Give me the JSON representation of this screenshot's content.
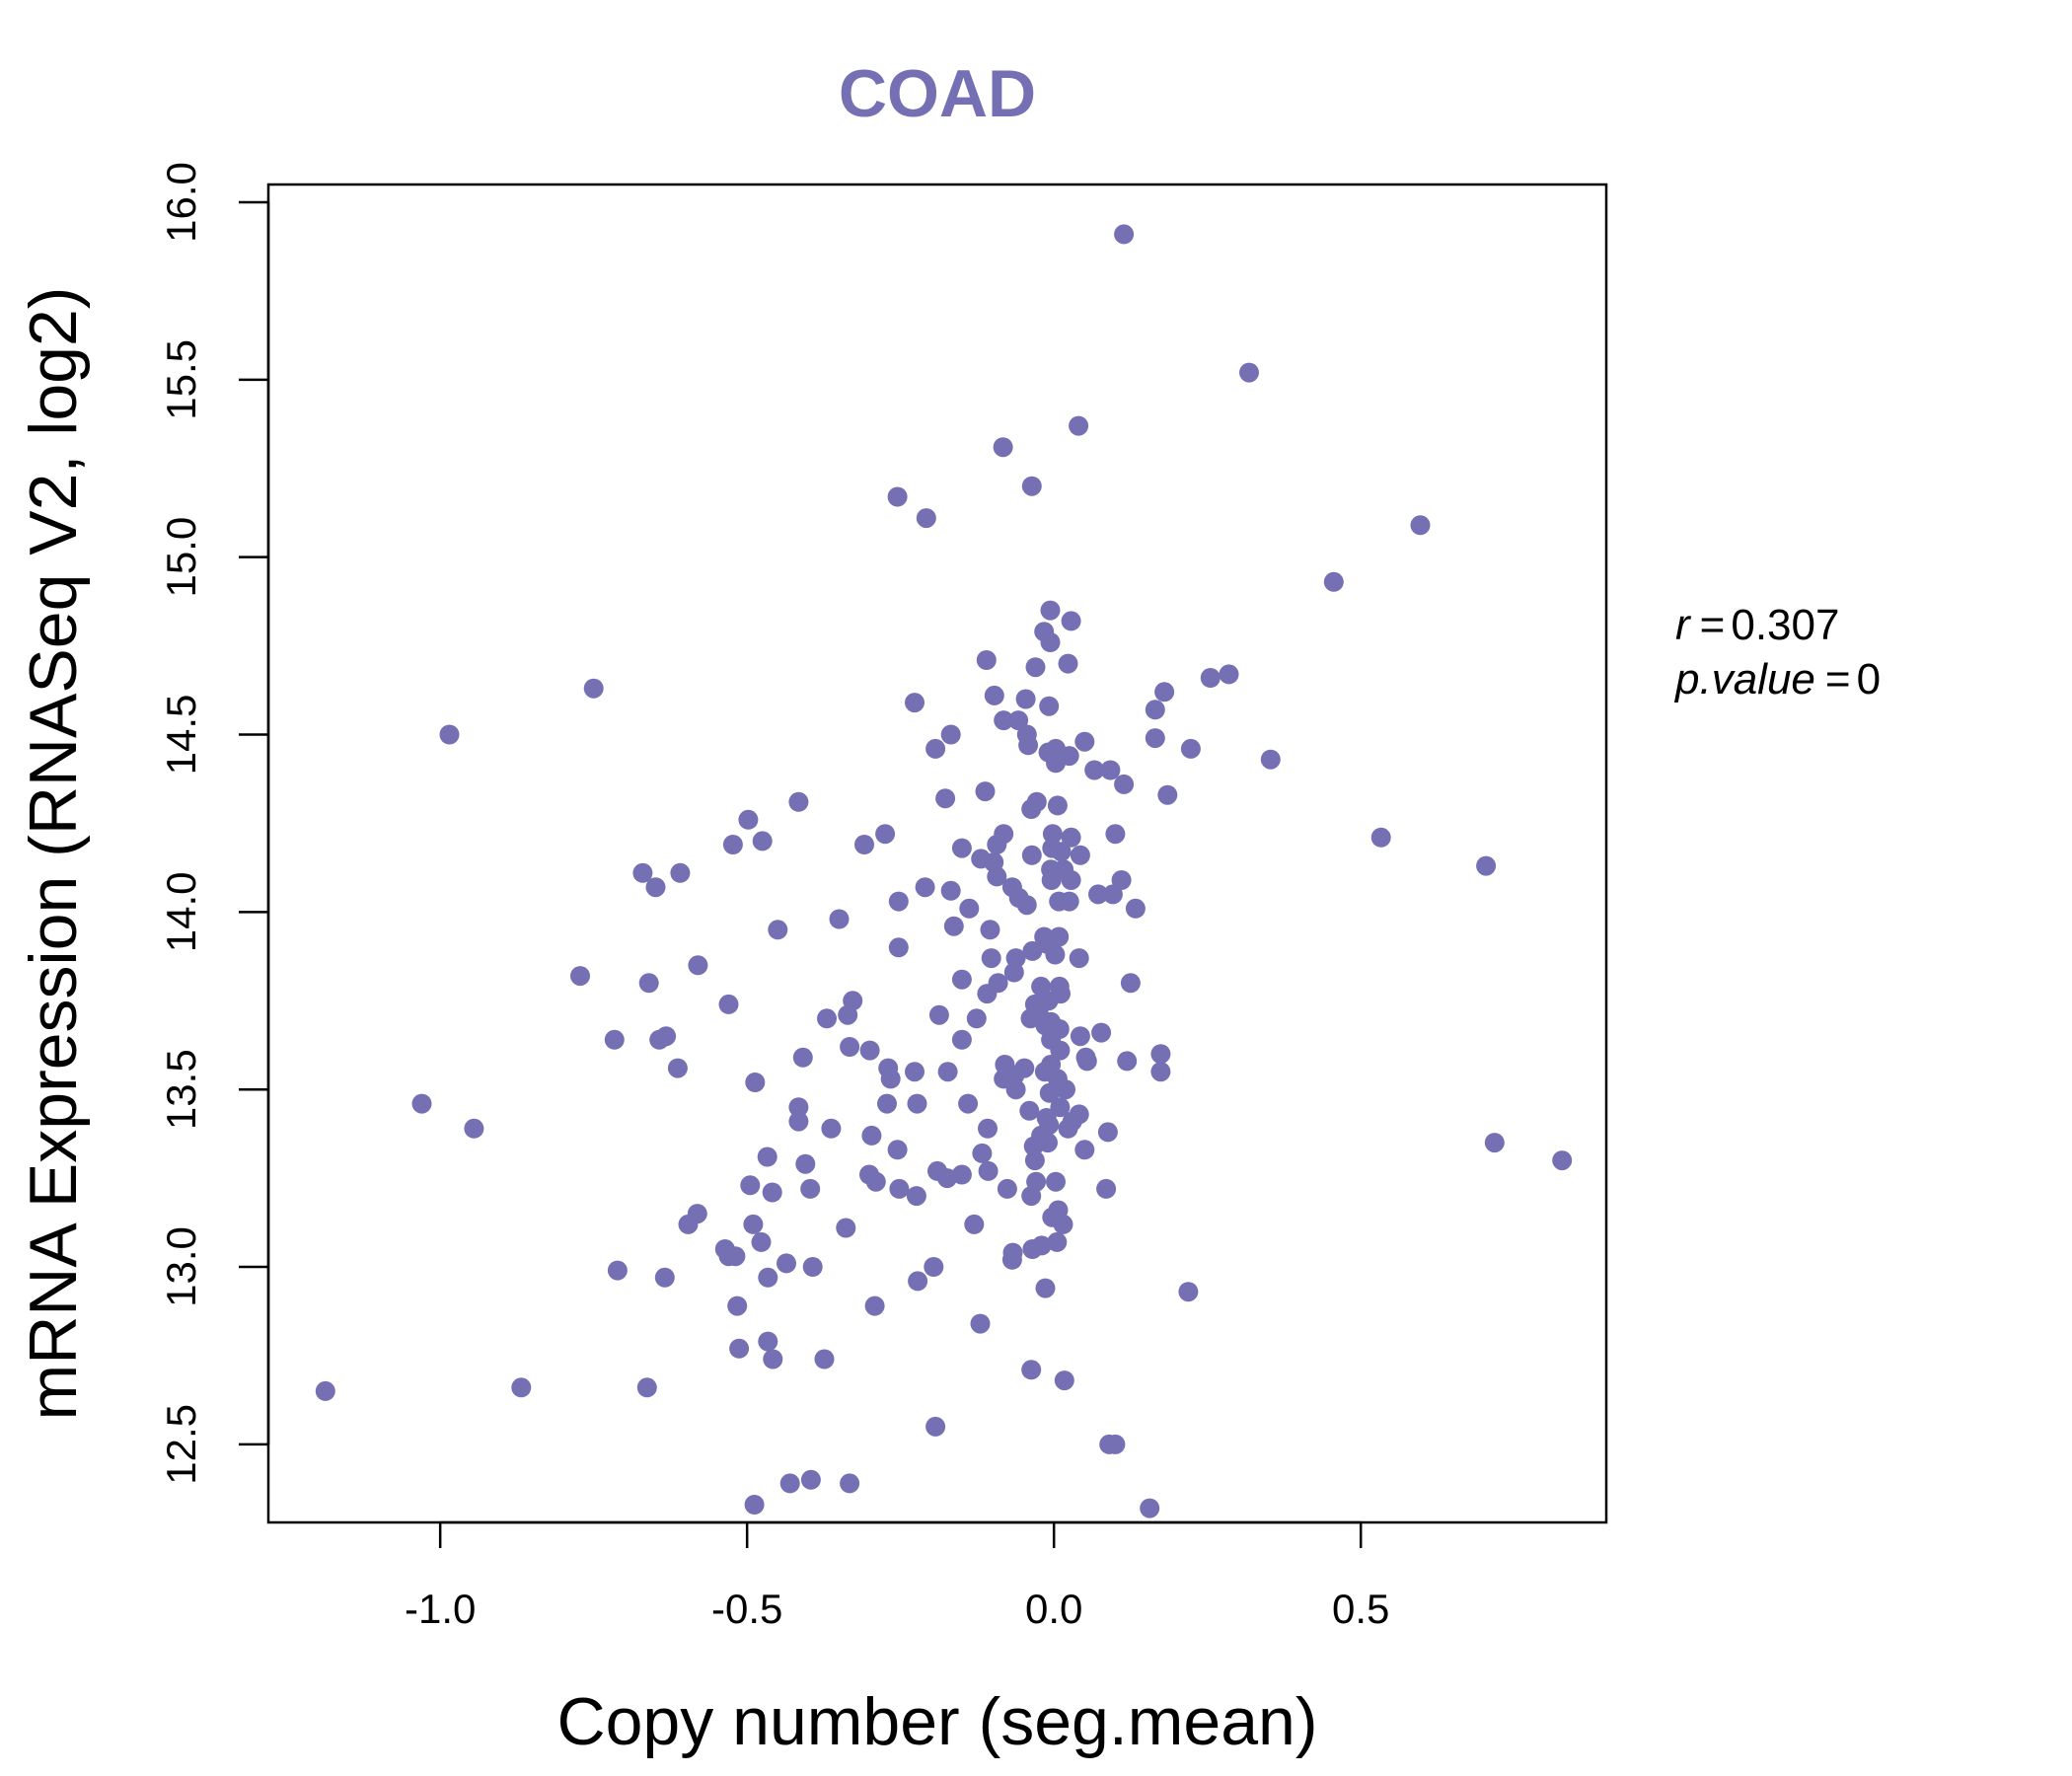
{
  "chart_data": {
    "type": "scatter",
    "title": "COAD",
    "xlabel": "Copy number (seg.mean)",
    "ylabel": "mRNA Expression (RNASeq V2, log2)",
    "xlim": [
      -1.28,
      0.9
    ],
    "ylim": [
      12.28,
      16.05
    ],
    "xticks": [
      -1.0,
      -0.5,
      0.0,
      0.5
    ],
    "xtick_labels": [
      "-1.0",
      "-0.5",
      "0.0",
      "0.5"
    ],
    "yticks": [
      12.5,
      13.0,
      13.5,
      14.0,
      14.5,
      15.0,
      15.5,
      16.0
    ],
    "ytick_labels": [
      "12.5",
      "13.0",
      "13.5",
      "14.0",
      "14.5",
      "15.0",
      "15.5",
      "16.0"
    ],
    "point_color": "#7570b3",
    "grid": false,
    "annotation": {
      "r_label": "r",
      "r_value": "0.307",
      "p_label": "p.value",
      "p_value": "0"
    },
    "points": [
      {
        "x": 0.114,
        "y": 15.91
      },
      {
        "x": 0.318,
        "y": 15.52
      },
      {
        "x": 0.04,
        "y": 15.37
      },
      {
        "x": -0.083,
        "y": 15.31
      },
      {
        "x": -0.036,
        "y": 15.2
      },
      {
        "x": -0.255,
        "y": 15.17
      },
      {
        "x": -0.208,
        "y": 15.11
      },
      {
        "x": 0.597,
        "y": 15.09
      },
      {
        "x": 0.456,
        "y": 14.93
      },
      {
        "x": -0.006,
        "y": 14.85
      },
      {
        "x": 0.028,
        "y": 14.82
      },
      {
        "x": -0.016,
        "y": 14.79
      },
      {
        "x": -0.006,
        "y": 14.76
      },
      {
        "x": -0.11,
        "y": 14.71
      },
      {
        "x": -0.03,
        "y": 14.69
      },
      {
        "x": 0.023,
        "y": 14.7
      },
      {
        "x": 0.285,
        "y": 14.67
      },
      {
        "x": 0.255,
        "y": 14.66
      },
      {
        "x": -0.75,
        "y": 14.63
      },
      {
        "x": 0.18,
        "y": 14.62
      },
      {
        "x": -0.097,
        "y": 14.61
      },
      {
        "x": -0.227,
        "y": 14.59
      },
      {
        "x": -0.046,
        "y": 14.6
      },
      {
        "x": -0.008,
        "y": 14.58
      },
      {
        "x": 0.165,
        "y": 14.57
      },
      {
        "x": -0.082,
        "y": 14.54
      },
      {
        "x": -0.058,
        "y": 14.54
      },
      {
        "x": -0.985,
        "y": 14.5
      },
      {
        "x": -0.168,
        "y": 14.5
      },
      {
        "x": -0.044,
        "y": 14.5
      },
      {
        "x": 0.165,
        "y": 14.49
      },
      {
        "x": 0.05,
        "y": 14.48
      },
      {
        "x": -0.193,
        "y": 14.46
      },
      {
        "x": 0.223,
        "y": 14.46
      },
      {
        "x": 0.003,
        "y": 14.46
      },
      {
        "x": -0.042,
        "y": 14.47
      },
      {
        "x": -0.009,
        "y": 14.45
      },
      {
        "x": 0.025,
        "y": 14.44
      },
      {
        "x": 0.353,
        "y": 14.43
      },
      {
        "x": 0.003,
        "y": 14.42
      },
      {
        "x": 0.066,
        "y": 14.4
      },
      {
        "x": 0.092,
        "y": 14.4
      },
      {
        "x": 0.114,
        "y": 14.36
      },
      {
        "x": -0.112,
        "y": 14.34
      },
      {
        "x": -0.177,
        "y": 14.32
      },
      {
        "x": 0.185,
        "y": 14.33
      },
      {
        "x": -0.416,
        "y": 14.31
      },
      {
        "x": -0.028,
        "y": 14.31
      },
      {
        "x": 0.006,
        "y": 14.3
      },
      {
        "x": -0.037,
        "y": 14.29
      },
      {
        "x": -0.498,
        "y": 14.26
      },
      {
        "x": -0.275,
        "y": 14.22
      },
      {
        "x": -0.082,
        "y": 14.22
      },
      {
        "x": -0.002,
        "y": 14.22
      },
      {
        "x": 0.1,
        "y": 14.22
      },
      {
        "x": 0.533,
        "y": 14.21
      },
      {
        "x": 0.028,
        "y": 14.21
      },
      {
        "x": -0.475,
        "y": 14.2
      },
      {
        "x": -0.523,
        "y": 14.19
      },
      {
        "x": -0.309,
        "y": 14.19
      },
      {
        "x": -0.093,
        "y": 14.19
      },
      {
        "x": -0.15,
        "y": 14.18
      },
      {
        "x": -0.003,
        "y": 14.18
      },
      {
        "x": 0.012,
        "y": 14.17
      },
      {
        "x": -0.036,
        "y": 14.16
      },
      {
        "x": 0.043,
        "y": 14.16
      },
      {
        "x": -0.119,
        "y": 14.15
      },
      {
        "x": -0.098,
        "y": 14.14
      },
      {
        "x": 0.704,
        "y": 14.13
      },
      {
        "x": -0.005,
        "y": 14.12
      },
      {
        "x": 0.016,
        "y": 14.12
      },
      {
        "x": -0.67,
        "y": 14.11
      },
      {
        "x": -0.609,
        "y": 14.11
      },
      {
        "x": -0.093,
        "y": 14.1
      },
      {
        "x": -0.004,
        "y": 14.09
      },
      {
        "x": 0.028,
        "y": 14.09
      },
      {
        "x": 0.11,
        "y": 14.09
      },
      {
        "x": -0.649,
        "y": 14.07
      },
      {
        "x": -0.21,
        "y": 14.07
      },
      {
        "x": -0.068,
        "y": 14.07
      },
      {
        "x": -0.168,
        "y": 14.06
      },
      {
        "x": 0.072,
        "y": 14.05
      },
      {
        "x": 0.096,
        "y": 14.05
      },
      {
        "x": -0.057,
        "y": 14.04
      },
      {
        "x": -0.253,
        "y": 14.03
      },
      {
        "x": 0.008,
        "y": 14.03
      },
      {
        "x": 0.025,
        "y": 14.03
      },
      {
        "x": -0.138,
        "y": 14.01
      },
      {
        "x": -0.044,
        "y": 14.02
      },
      {
        "x": 0.133,
        "y": 14.01
      },
      {
        "x": -0.35,
        "y": 13.98
      },
      {
        "x": -0.163,
        "y": 13.96
      },
      {
        "x": -0.45,
        "y": 13.95
      },
      {
        "x": -0.104,
        "y": 13.95
      },
      {
        "x": -0.016,
        "y": 13.93
      },
      {
        "x": 0.008,
        "y": 13.93
      },
      {
        "x": -0.253,
        "y": 13.9
      },
      {
        "x": -0.011,
        "y": 13.91
      },
      {
        "x": -0.035,
        "y": 13.89
      },
      {
        "x": -0.102,
        "y": 13.87
      },
      {
        "x": -0.062,
        "y": 13.87
      },
      {
        "x": 0.002,
        "y": 13.88
      },
      {
        "x": 0.041,
        "y": 13.87
      },
      {
        "x": -0.58,
        "y": 13.85
      },
      {
        "x": -0.772,
        "y": 13.82
      },
      {
        "x": -0.065,
        "y": 13.83
      },
      {
        "x": -0.15,
        "y": 13.81
      },
      {
        "x": -0.66,
        "y": 13.8
      },
      {
        "x": 0.125,
        "y": 13.8
      },
      {
        "x": -0.091,
        "y": 13.8
      },
      {
        "x": 0.009,
        "y": 13.79
      },
      {
        "x": -0.021,
        "y": 13.79
      },
      {
        "x": -0.109,
        "y": 13.77
      },
      {
        "x": 0.011,
        "y": 13.77
      },
      {
        "x": -0.53,
        "y": 13.74
      },
      {
        "x": -0.328,
        "y": 13.75
      },
      {
        "x": -0.031,
        "y": 13.74
      },
      {
        "x": -0.009,
        "y": 13.75
      },
      {
        "x": -0.025,
        "y": 13.72
      },
      {
        "x": -0.336,
        "y": 13.71
      },
      {
        "x": -0.37,
        "y": 13.7
      },
      {
        "x": -0.187,
        "y": 13.71
      },
      {
        "x": -0.126,
        "y": 13.7
      },
      {
        "x": -0.038,
        "y": 13.7
      },
      {
        "x": -0.005,
        "y": 13.69
      },
      {
        "x": -0.014,
        "y": 13.68
      },
      {
        "x": 0.009,
        "y": 13.67
      },
      {
        "x": 0.077,
        "y": 13.66
      },
      {
        "x": 0.043,
        "y": 13.65
      },
      {
        "x": -0.716,
        "y": 13.64
      },
      {
        "x": -0.643,
        "y": 13.64
      },
      {
        "x": -0.15,
        "y": 13.64
      },
      {
        "x": -0.005,
        "y": 13.64
      },
      {
        "x": -0.632,
        "y": 13.65
      },
      {
        "x": -0.333,
        "y": 13.62
      },
      {
        "x": -0.3,
        "y": 13.61
      },
      {
        "x": 0.01,
        "y": 13.61
      },
      {
        "x": 0.174,
        "y": 13.6
      },
      {
        "x": -0.409,
        "y": 13.59
      },
      {
        "x": 0.052,
        "y": 13.59
      },
      {
        "x": 0.119,
        "y": 13.58
      },
      {
        "x": -0.27,
        "y": 13.56
      },
      {
        "x": -0.08,
        "y": 13.57
      },
      {
        "x": -0.005,
        "y": 13.57
      },
      {
        "x": 0.054,
        "y": 13.58
      },
      {
        "x": -0.048,
        "y": 13.56
      },
      {
        "x": -0.613,
        "y": 13.56
      },
      {
        "x": -0.173,
        "y": 13.55
      },
      {
        "x": -0.227,
        "y": 13.55
      },
      {
        "x": 0.174,
        "y": 13.55
      },
      {
        "x": -0.015,
        "y": 13.55
      },
      {
        "x": -0.064,
        "y": 13.54
      },
      {
        "x": -0.266,
        "y": 13.53
      },
      {
        "x": -0.082,
        "y": 13.53
      },
      {
        "x": 0.006,
        "y": 13.53
      },
      {
        "x": -0.487,
        "y": 13.52
      },
      {
        "x": -0.062,
        "y": 13.5
      },
      {
        "x": 0.019,
        "y": 13.5
      },
      {
        "x": -0.007,
        "y": 13.49
      },
      {
        "x": -1.03,
        "y": 13.46
      },
      {
        "x": -0.272,
        "y": 13.46
      },
      {
        "x": -0.223,
        "y": 13.46
      },
      {
        "x": -0.416,
        "y": 13.45
      },
      {
        "x": -0.14,
        "y": 13.46
      },
      {
        "x": 0.01,
        "y": 13.45
      },
      {
        "x": -0.04,
        "y": 13.44
      },
      {
        "x": 0.041,
        "y": 13.43
      },
      {
        "x": -0.012,
        "y": 13.42
      },
      {
        "x": -0.416,
        "y": 13.41
      },
      {
        "x": 0.03,
        "y": 13.41
      },
      {
        "x": -0.008,
        "y": 13.4
      },
      {
        "x": -0.945,
        "y": 13.39
      },
      {
        "x": -0.363,
        "y": 13.39
      },
      {
        "x": -0.108,
        "y": 13.39
      },
      {
        "x": 0.023,
        "y": 13.39
      },
      {
        "x": 0.088,
        "y": 13.38
      },
      {
        "x": -0.297,
        "y": 13.37
      },
      {
        "x": -0.021,
        "y": 13.37
      },
      {
        "x": 0.718,
        "y": 13.35
      },
      {
        "x": -0.01,
        "y": 13.35
      },
      {
        "x": -0.255,
        "y": 13.33
      },
      {
        "x": -0.033,
        "y": 13.34
      },
      {
        "x": 0.05,
        "y": 13.33
      },
      {
        "x": -0.117,
        "y": 13.32
      },
      {
        "x": -0.467,
        "y": 13.31
      },
      {
        "x": 0.828,
        "y": 13.3
      },
      {
        "x": -0.405,
        "y": 13.29
      },
      {
        "x": -0.031,
        "y": 13.3
      },
      {
        "x": -0.19,
        "y": 13.27
      },
      {
        "x": -0.301,
        "y": 13.26
      },
      {
        "x": -0.107,
        "y": 13.27
      },
      {
        "x": -0.15,
        "y": 13.26
      },
      {
        "x": -0.174,
        "y": 13.25
      },
      {
        "x": -0.29,
        "y": 13.24
      },
      {
        "x": -0.029,
        "y": 13.24
      },
      {
        "x": 0.003,
        "y": 13.24
      },
      {
        "x": -0.495,
        "y": 13.23
      },
      {
        "x": -0.397,
        "y": 13.22
      },
      {
        "x": -0.076,
        "y": 13.22
      },
      {
        "x": -0.252,
        "y": 13.22
      },
      {
        "x": 0.085,
        "y": 13.22
      },
      {
        "x": -0.459,
        "y": 13.21
      },
      {
        "x": -0.224,
        "y": 13.2
      },
      {
        "x": -0.037,
        "y": 13.2
      },
      {
        "x": 0.007,
        "y": 13.16
      },
      {
        "x": -0.581,
        "y": 13.15
      },
      {
        "x": -0.596,
        "y": 13.12
      },
      {
        "x": -0.49,
        "y": 13.12
      },
      {
        "x": -0.13,
        "y": 13.12
      },
      {
        "x": 0.015,
        "y": 13.12
      },
      {
        "x": -0.003,
        "y": 13.14
      },
      {
        "x": -0.339,
        "y": 13.11
      },
      {
        "x": -0.477,
        "y": 13.07
      },
      {
        "x": 0.005,
        "y": 13.07
      },
      {
        "x": -0.02,
        "y": 13.06
      },
      {
        "x": -0.035,
        "y": 13.05
      },
      {
        "x": -0.536,
        "y": 13.05
      },
      {
        "x": -0.53,
        "y": 13.03
      },
      {
        "x": -0.067,
        "y": 13.04
      },
      {
        "x": -0.519,
        "y": 13.03
      },
      {
        "x": -0.068,
        "y": 13.02
      },
      {
        "x": -0.436,
        "y": 13.01
      },
      {
        "x": -0.393,
        "y": 13.0
      },
      {
        "x": -0.196,
        "y": 13.0
      },
      {
        "x": -0.711,
        "y": 12.99
      },
      {
        "x": -0.466,
        "y": 12.97
      },
      {
        "x": -0.634,
        "y": 12.97
      },
      {
        "x": -0.222,
        "y": 12.96
      },
      {
        "x": -0.014,
        "y": 12.94
      },
      {
        "x": 0.219,
        "y": 12.93
      },
      {
        "x": -0.516,
        "y": 12.89
      },
      {
        "x": -0.292,
        "y": 12.89
      },
      {
        "x": -0.12,
        "y": 12.84
      },
      {
        "x": -0.466,
        "y": 12.79
      },
      {
        "x": -0.513,
        "y": 12.77
      },
      {
        "x": -0.458,
        "y": 12.74
      },
      {
        "x": -0.374,
        "y": 12.74
      },
      {
        "x": -0.037,
        "y": 12.71
      },
      {
        "x": 0.017,
        "y": 12.68
      },
      {
        "x": -0.663,
        "y": 12.66
      },
      {
        "x": -0.868,
        "y": 12.66
      },
      {
        "x": -1.187,
        "y": 12.65
      },
      {
        "x": -0.193,
        "y": 12.55
      },
      {
        "x": 0.09,
        "y": 12.5
      },
      {
        "x": 0.1,
        "y": 12.5
      },
      {
        "x": -0.396,
        "y": 12.4
      },
      {
        "x": -0.43,
        "y": 12.39
      },
      {
        "x": -0.333,
        "y": 12.39
      },
      {
        "x": -0.488,
        "y": 12.33
      },
      {
        "x": 0.156,
        "y": 12.32
      }
    ]
  }
}
